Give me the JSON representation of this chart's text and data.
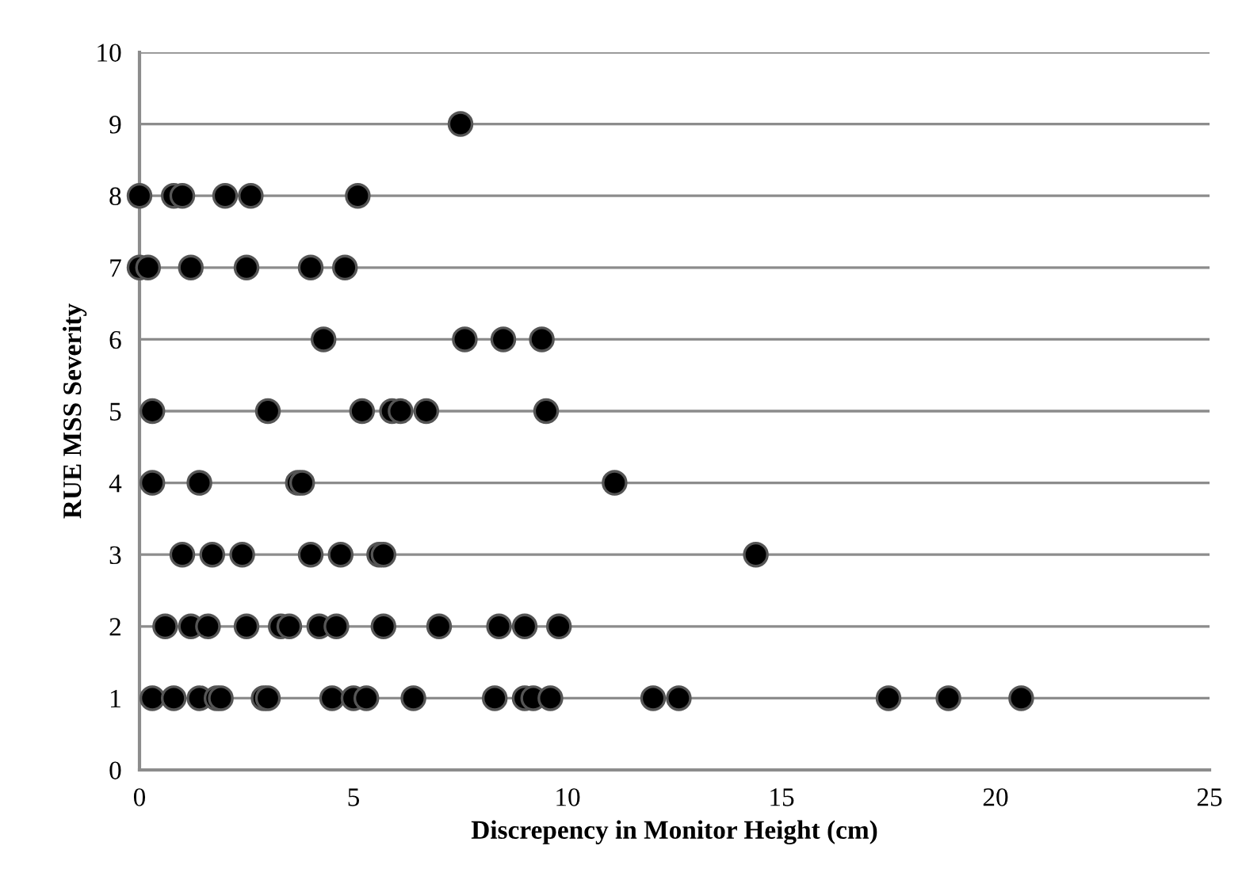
{
  "chart_data": {
    "type": "scatter",
    "xlabel": "Discrepency in Monitor Height (cm)",
    "ylabel": "RUE MSS Severity",
    "x": [
      7.5,
      0,
      0.8,
      1.0,
      2.0,
      2.6,
      5.1,
      0,
      0.2,
      1.2,
      2.5,
      4.0,
      4.8,
      4.3,
      7.6,
      8.5,
      9.4,
      0.3,
      3.0,
      5.2,
      5.9,
      6.1,
      6.7,
      9.5,
      0.3,
      1.4,
      3.7,
      3.8,
      11.1,
      1.0,
      1.7,
      2.4,
      4.0,
      4.7,
      5.6,
      5.7,
      14.4,
      0.6,
      1.2,
      1.6,
      2.5,
      3.3,
      3.5,
      4.2,
      4.6,
      5.7,
      7.0,
      8.4,
      9.0,
      9.8,
      0.3,
      0.8,
      1.4,
      1.8,
      1.9,
      2.9,
      3.0,
      4.5,
      5.0,
      5.3,
      6.4,
      8.3,
      9.0,
      9.2,
      9.6,
      12.0,
      12.6,
      17.5,
      18.9,
      20.6
    ],
    "values": [
      9,
      8,
      8,
      8,
      8,
      8,
      8,
      7,
      7,
      7,
      7,
      7,
      7,
      6,
      6,
      6,
      6,
      5,
      5,
      5,
      5,
      5,
      5,
      5,
      4,
      4,
      4,
      4,
      4,
      3,
      3,
      3,
      3,
      3,
      3,
      3,
      3,
      2,
      2,
      2,
      2,
      2,
      2,
      2,
      2,
      2,
      2,
      2,
      2,
      2,
      1,
      1,
      1,
      1,
      1,
      1,
      1,
      1,
      1,
      1,
      1,
      1,
      1,
      1,
      1,
      1,
      1,
      1,
      1,
      1
    ],
    "color": "#000000",
    "marker": "circle",
    "xlim": [
      0,
      25
    ],
    "xticks": [
      0,
      5,
      10,
      15,
      20,
      25
    ],
    "ylim": [
      0,
      10
    ],
    "yticks": [
      0,
      1,
      2,
      3,
      4,
      5,
      6,
      7,
      8,
      9,
      10
    ],
    "grid": "y"
  }
}
